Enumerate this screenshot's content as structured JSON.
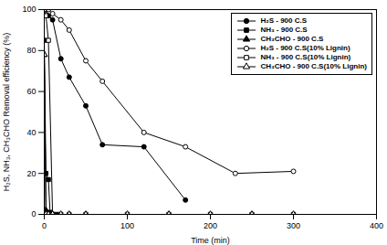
{
  "chart_data": {
    "type": "line",
    "xlabel": "Time (min)",
    "ylabel": "H₂S, NH₃, CH₃CHO Removal efficiency (%)",
    "xlim": [
      0,
      400
    ],
    "ylim": [
      0,
      100
    ],
    "xticks": [
      0,
      100,
      200,
      300,
      400
    ],
    "yticks": [
      0,
      20,
      40,
      60,
      80,
      100
    ],
    "grid": false,
    "legend": "upper right",
    "series": [
      {
        "name": "H₂S - 900 C.S",
        "color": "black",
        "marker": "circle",
        "line_style": "solid",
        "x": [
          0,
          2,
          5,
          10,
          20,
          30,
          50,
          70,
          120,
          170
        ],
        "values": [
          100,
          100,
          97,
          95,
          76,
          67,
          53,
          34,
          33,
          7
        ]
      },
      {
        "name": "NH₃ - 900 C.S",
        "color": "black",
        "marker": "square",
        "line_style": "solid",
        "x": [
          0,
          2,
          5,
          7,
          10,
          15
        ],
        "values": [
          85,
          20,
          17,
          1,
          0,
          0
        ]
      },
      {
        "name": "CH₃CHO - 900 C.S",
        "color": "black",
        "marker": "triangle",
        "line_style": "solid",
        "x": [
          0,
          2,
          3,
          5,
          10
        ],
        "values": [
          78,
          2,
          1,
          0,
          0
        ]
      },
      {
        "name": "H₂S - 900 C.S(10% Lignin)",
        "color": "black",
        "marker": "open-circle",
        "line_style": "solid",
        "x": [
          0,
          2,
          5,
          10,
          20,
          30,
          50,
          70,
          120,
          170,
          230,
          300
        ],
        "values": [
          100,
          100,
          100,
          98,
          95,
          90,
          75,
          65,
          40,
          33,
          20,
          21
        ]
      },
      {
        "name": "NH₃ - 900 C.S(10% Lignin)",
        "color": "black",
        "marker": "open-square",
        "line_style": "solid",
        "x": [
          0,
          2,
          5,
          10,
          20,
          30,
          50,
          100,
          150,
          200,
          250,
          300
        ],
        "values": [
          100,
          97,
          85,
          0,
          0,
          0,
          0,
          0,
          0,
          0,
          0,
          0
        ]
      },
      {
        "name": "CH₃CHO - 900 C.S(10% Lignin)",
        "color": "black",
        "marker": "open-triangle",
        "line_style": "solid",
        "x": [
          0,
          2,
          5,
          10,
          20,
          30,
          50,
          100,
          150,
          200,
          250,
          300
        ],
        "values": [
          78,
          0,
          0,
          0,
          0,
          0,
          0,
          0,
          0,
          0,
          0,
          0
        ]
      }
    ]
  }
}
